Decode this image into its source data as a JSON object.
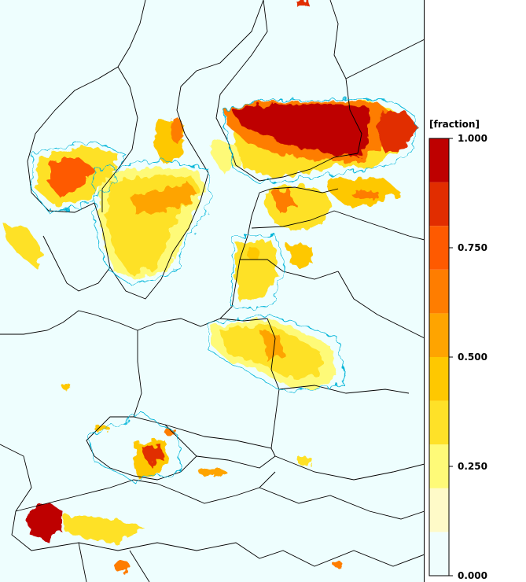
{
  "legend": {
    "title": "[fraction]",
    "ticks": [
      {
        "label": "1.000",
        "value": 1.0
      },
      {
        "label": "0.750",
        "value": 0.75
      },
      {
        "label": "0.500",
        "value": 0.5
      },
      {
        "label": "0.250",
        "value": 0.25
      },
      {
        "label": "0.000",
        "value": 0.0
      }
    ],
    "colors": [
      "#effdfd",
      "#fefac8",
      "#fefa78",
      "#fee128",
      "#fec800",
      "#fea400",
      "#fe7d00",
      "#fe5a00",
      "#e12d00",
      "#be0000"
    ]
  },
  "chart_data": {
    "type": "heatmap",
    "title": "",
    "colorbar_label": "[fraction]",
    "range": [
      0.0,
      1.0
    ],
    "levels": [
      0.0,
      0.1,
      0.2,
      0.3,
      0.4,
      0.5,
      0.6,
      0.7,
      0.8,
      0.9,
      1.0
    ],
    "tick_labels": [
      "1.000",
      "0.750",
      "0.500",
      "0.250",
      "0.000"
    ],
    "colors": [
      "#effdfd",
      "#fefac8",
      "#fefa78",
      "#fee128",
      "#fec800",
      "#fea400",
      "#fe7d00",
      "#fe5a00",
      "#e12d00",
      "#be0000"
    ]
  }
}
